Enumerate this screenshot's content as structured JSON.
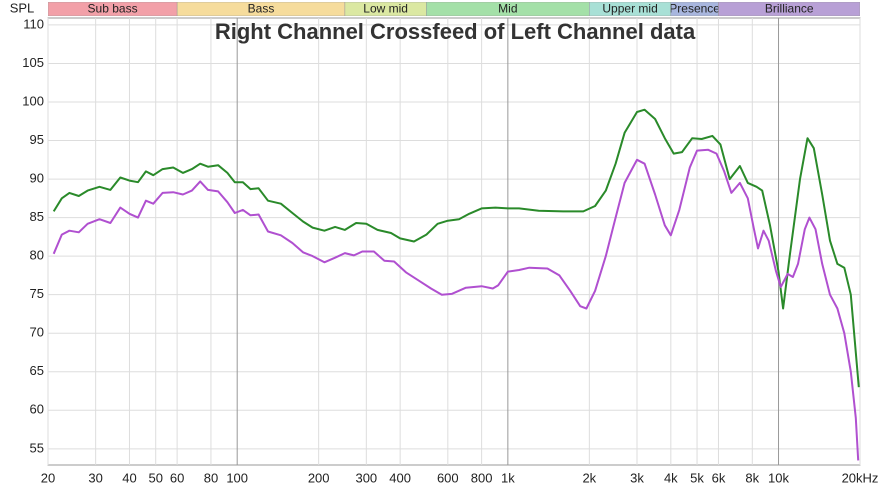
{
  "chart_data": {
    "type": "line",
    "title": "Right Channel Crossfeed of Left Channel data",
    "ylabel": "SPL",
    "xscale": "log",
    "xlim": [
      20,
      20000
    ],
    "ylim": [
      52.9,
      110.9
    ],
    "grid": true,
    "xticks": [
      20,
      30,
      40,
      50,
      60,
      80,
      100,
      200,
      300,
      400,
      600,
      800,
      {
        "value": 1000,
        "label": "1k"
      },
      {
        "value": 2000,
        "label": "2k"
      },
      {
        "value": 3000,
        "label": "3k"
      },
      {
        "value": 4000,
        "label": "4k"
      },
      {
        "value": 5000,
        "label": "5k"
      },
      {
        "value": 6000,
        "label": "6k"
      },
      {
        "value": 8000,
        "label": "8k"
      },
      {
        "value": 10000,
        "label": "10k"
      },
      {
        "value": 20000,
        "label": "20kHz"
      }
    ],
    "yticks": [
      55,
      60,
      65,
      70,
      75,
      80,
      85,
      90,
      95,
      100,
      105,
      110
    ],
    "bands": [
      {
        "name": "Sub bass",
        "from": 20,
        "to": 60,
        "color": "#f2a0a8"
      },
      {
        "name": "Bass",
        "from": 60,
        "to": 250,
        "color": "#f6dc9c"
      },
      {
        "name": "Low mid",
        "from": 250,
        "to": 500,
        "color": "#dbe8a2"
      },
      {
        "name": "Mid",
        "from": 500,
        "to": 2000,
        "color": "#a4e0a8"
      },
      {
        "name": "Upper mid",
        "from": 2000,
        "to": 4000,
        "color": "#a8e0d6"
      },
      {
        "name": "Presence",
        "from": 4000,
        "to": 6000,
        "color": "#a8b6de"
      },
      {
        "name": "Brilliance",
        "from": 6000,
        "to": 20000,
        "color": "#b8a0d6"
      }
    ],
    "series": [
      {
        "color": "#2a8a2a",
        "x": [
          21,
          22.5,
          24,
          26,
          28,
          31,
          34,
          37,
          40,
          43,
          46,
          49,
          53,
          58,
          63,
          68,
          73,
          78,
          85,
          92,
          98,
          105,
          112,
          120,
          130,
          145,
          160,
          175,
          190,
          210,
          230,
          250,
          275,
          300,
          330,
          370,
          400,
          450,
          500,
          550,
          600,
          660,
          720,
          800,
          900,
          1000,
          1100,
          1300,
          1600,
          1900,
          2100,
          2300,
          2500,
          2700,
          3000,
          3200,
          3500,
          3800,
          4100,
          4400,
          4800,
          5200,
          5700,
          6100,
          6600,
          7200,
          7700,
          8300,
          8700,
          9300,
          10000,
          10400,
          11000,
          12000,
          12800,
          13500,
          14500,
          15500,
          16500,
          17500,
          18500,
          19800
        ],
        "values": [
          85.8,
          87.5,
          88.2,
          87.8,
          88.5,
          89.0,
          88.6,
          90.2,
          89.8,
          89.6,
          91.0,
          90.5,
          91.3,
          91.5,
          90.8,
          91.3,
          92.0,
          91.6,
          91.8,
          90.8,
          89.6,
          89.6,
          88.7,
          88.8,
          87.2,
          86.8,
          85.6,
          84.5,
          83.7,
          83.3,
          83.8,
          83.4,
          84.3,
          84.2,
          83.4,
          83.0,
          82.3,
          81.9,
          82.8,
          84.2,
          84.6,
          84.8,
          85.5,
          86.2,
          86.3,
          86.2,
          86.2,
          85.9,
          85.8,
          85.8,
          86.5,
          88.5,
          92,
          96,
          98.7,
          99.0,
          97.8,
          95.3,
          93.3,
          93.5,
          95.3,
          95.2,
          95.6,
          94.5,
          90.0,
          91.7,
          89.5,
          89.0,
          88.5,
          84.0,
          78.0,
          73.2,
          80.0,
          90.0,
          95.3,
          94.0,
          88.0,
          82.0,
          79.0,
          78.5,
          75.0,
          63.0
        ]
      },
      {
        "color": "#b050d0",
        "x": [
          21,
          22.5,
          24,
          26,
          28,
          31,
          34,
          37,
          40,
          43,
          46,
          49,
          53,
          58,
          63,
          68,
          73,
          78,
          85,
          92,
          98,
          105,
          112,
          120,
          130,
          145,
          160,
          175,
          190,
          210,
          230,
          250,
          270,
          290,
          320,
          350,
          380,
          420,
          470,
          520,
          570,
          620,
          700,
          800,
          880,
          920,
          1000,
          1100,
          1200,
          1400,
          1550,
          1700,
          1850,
          1950,
          2100,
          2300,
          2500,
          2700,
          3000,
          3200,
          3500,
          3800,
          4000,
          4300,
          4700,
          5000,
          5500,
          5900,
          6300,
          6700,
          7200,
          7700,
          8100,
          8400,
          8800,
          9200,
          9800,
          10200,
          10800,
          11300,
          11800,
          12500,
          13000,
          13700,
          14500,
          15500,
          16500,
          17500,
          18500,
          19300,
          19700
        ],
        "values": [
          80.3,
          82.8,
          83.3,
          83.1,
          84.2,
          84.8,
          84.3,
          86.3,
          85.5,
          85.0,
          87.2,
          86.8,
          88.2,
          88.3,
          88.0,
          88.5,
          89.7,
          88.6,
          88.4,
          87.0,
          85.6,
          86.0,
          85.3,
          85.4,
          83.2,
          82.7,
          81.7,
          80.5,
          80.0,
          79.2,
          79.8,
          80.4,
          80.1,
          80.6,
          80.6,
          79.4,
          79.3,
          77.9,
          76.8,
          75.8,
          75.0,
          75.1,
          75.9,
          76.1,
          75.8,
          76.2,
          78.0,
          78.2,
          78.5,
          78.4,
          77.5,
          75.5,
          73.5,
          73.2,
          75.5,
          80,
          85,
          89.5,
          92.5,
          92.0,
          88.0,
          84,
          82.7,
          86,
          91.5,
          93.7,
          93.8,
          93.3,
          91,
          88.2,
          89.5,
          87.5,
          83.6,
          81,
          83.3,
          82,
          78,
          76,
          77.7,
          77.3,
          79,
          83.5,
          85.0,
          83.5,
          79,
          75,
          73.2,
          70,
          65,
          59,
          53.5
        ]
      }
    ]
  }
}
